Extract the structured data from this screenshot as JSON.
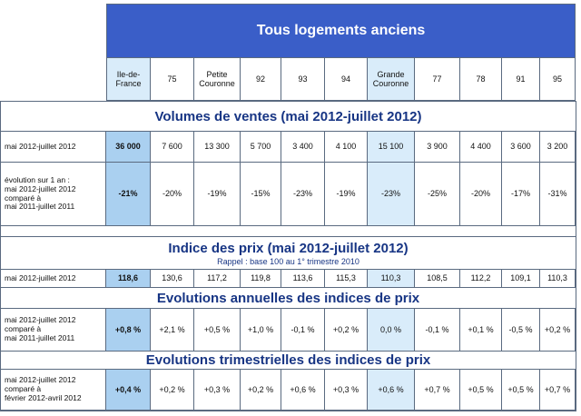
{
  "banner": "Tous logements anciens",
  "columns": [
    "Ile-de-\nFrance",
    "75",
    "Petite\nCouronne",
    "92",
    "93",
    "94",
    "Grande\nCouronne",
    "77",
    "78",
    "91",
    "95"
  ],
  "sections": [
    {
      "title": "Volumes de ventes (mai 2012-juillet 2012)",
      "rows": [
        {
          "label": "mai 2012-juillet 2012",
          "values": [
            "36 000",
            "7 600",
            "13 300",
            "5 700",
            "3 400",
            "4 100",
            "15 100",
            "3 900",
            "4 400",
            "3 600",
            "3 200"
          ]
        },
        {
          "label": "évolution sur 1 an :\nmai 2012-juillet 2012\ncomparé à\nmai 2011-juillet 2011",
          "values": [
            "-21%",
            "-20%",
            "-19%",
            "-15%",
            "-23%",
            "-19%",
            "-23%",
            "-25%",
            "-20%",
            "-17%",
            "-31%"
          ]
        }
      ]
    },
    {
      "title": "Indice des prix (mai 2012-juillet 2012)",
      "subtitle": "Rappel : base 100 au 1° trimestre 2010",
      "rows": [
        {
          "label": "mai 2012-juillet 2012",
          "values": [
            "118,6",
            "130,6",
            "117,2",
            "119,8",
            "113,6",
            "115,3",
            "110,3",
            "108,5",
            "112,2",
            "109,1",
            "110,3"
          ]
        }
      ]
    },
    {
      "title": "Evolutions annuelles des indices de prix",
      "rows": [
        {
          "label": "mai 2012-juillet 2012\ncomparé à\nmai 2011-juillet 2011",
          "values": [
            "+0,8 %",
            "+2,1 %",
            "+0,5 %",
            "+1,0 %",
            "-0,1 %",
            "+0,2 %",
            "0,0 %",
            "-0,1 %",
            "+0,1 %",
            "-0,5 %",
            "+0,2 %"
          ]
        }
      ]
    },
    {
      "title": "Evolutions trimestrielles des indices de prix",
      "rows": [
        {
          "label": "mai 2012-juillet 2012\ncomparé à\nfévrier 2012-avril 2012",
          "values": [
            "+0,4 %",
            "+0,2 %",
            "+0,3 %",
            "+0,2 %",
            "+0,6 %",
            "+0,3 %",
            "+0,6 %",
            "+0,7 %",
            "+0,5 %",
            "+0,5 %",
            "+0,7 %"
          ]
        }
      ]
    }
  ]
}
